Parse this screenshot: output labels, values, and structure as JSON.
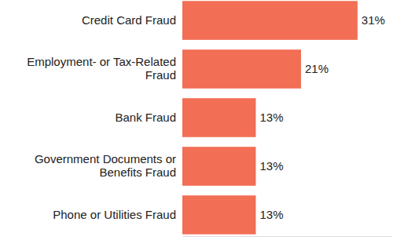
{
  "chart_data": {
    "type": "bar",
    "orientation": "horizontal",
    "categories": [
      "Credit Card Fraud",
      "Employment- or Tax-Related Fraud",
      "Bank Fraud",
      "Government Documents or Benefits Fraud",
      "Phone or Utilities Fraud"
    ],
    "values": [
      31,
      21,
      13,
      13,
      13
    ],
    "value_labels": [
      "31%",
      "21%",
      "13%",
      "13%",
      "13%"
    ],
    "color": "#f26e55",
    "xlim": [
      0,
      37
    ],
    "data_labels": true,
    "tick_labels": false,
    "grid": false
  }
}
